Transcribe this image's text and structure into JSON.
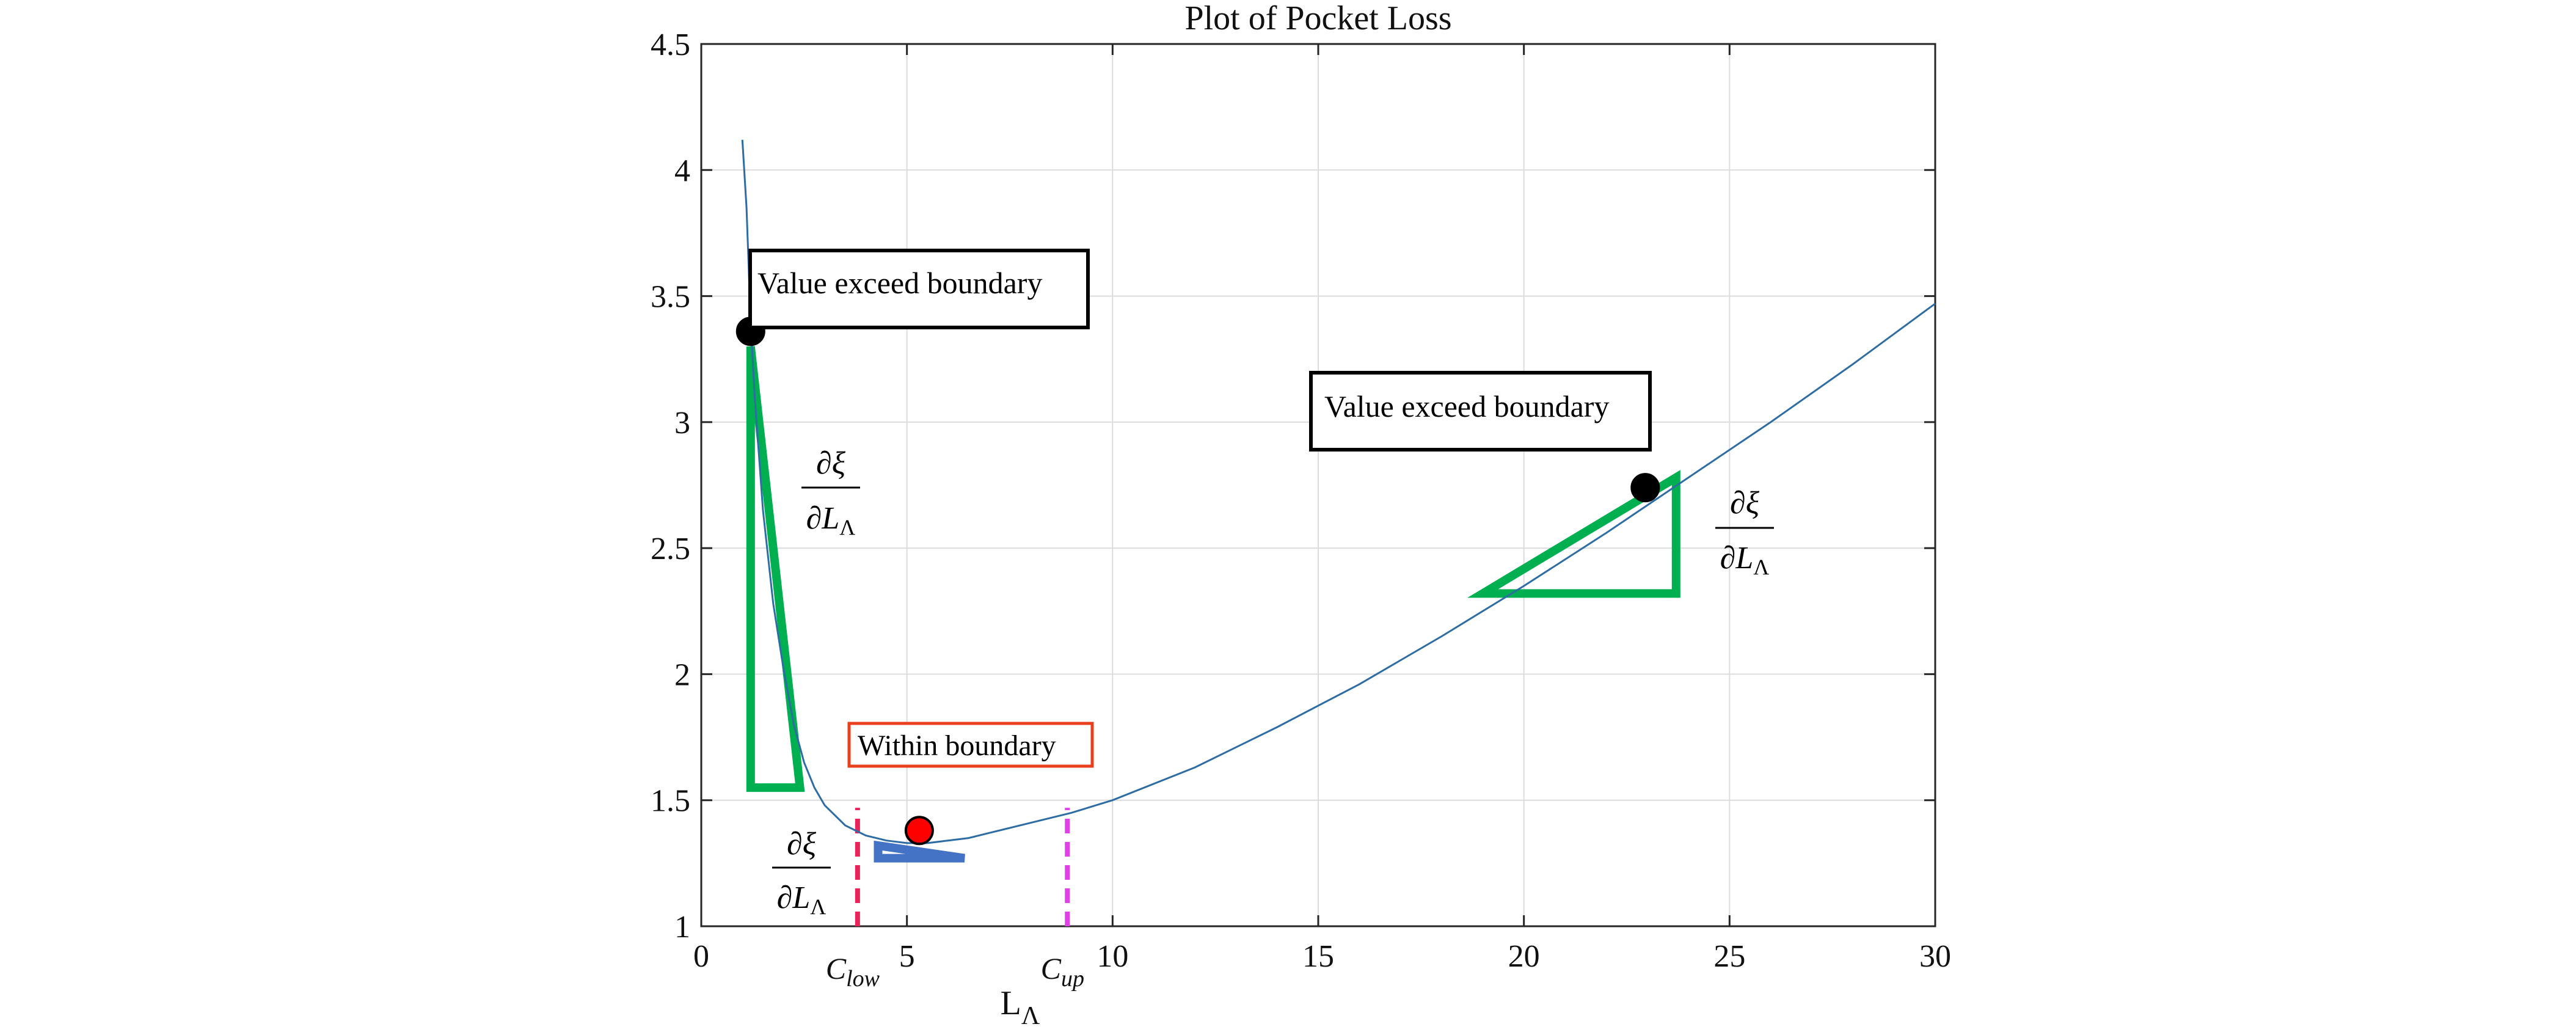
{
  "chart_data": {
    "type": "line",
    "title": "Plot of Pocket Loss",
    "xlabel": "L",
    "xlabel_subscript": "Λ",
    "ylabel": "",
    "xlim": [
      0,
      30
    ],
    "ylim": [
      1,
      4.5
    ],
    "xticks": [
      0,
      5,
      10,
      15,
      20,
      25,
      30
    ],
    "yticks": [
      1,
      1.5,
      2,
      2.5,
      3,
      3.5,
      4,
      4.5
    ],
    "xtick_labels": [
      "0",
      "5",
      "10",
      "15",
      "20",
      "25",
      "30"
    ],
    "ytick_labels": [
      "1",
      "1.5",
      "2",
      "2.5",
      "3",
      "3.5",
      "4",
      "4.5"
    ],
    "grid": true,
    "colors": {
      "curve": "#2e6da4",
      "grid": "#dcdcdc",
      "green_triangle": "#00b050",
      "blue_triangle": "#4472c4",
      "red_point": "#ff0000",
      "black_point": "#000000",
      "c_low_line": "#e8245a",
      "c_up_line": "#e040e8",
      "within_box_border": "#e8401c"
    },
    "series": [
      {
        "x": [
          1.0,
          1.1,
          1.2,
          1.3,
          1.5,
          1.75,
          2.0,
          2.25,
          2.5,
          2.75,
          3.0,
          3.5,
          4.0,
          4.5,
          5.0,
          5.5,
          6.0,
          6.5,
          7.0,
          8.0,
          9.0,
          10.0,
          12.0,
          14.0,
          16.0,
          18.0,
          20.0,
          22.0,
          24.0,
          26.0,
          28.0,
          30.0
        ],
        "y": [
          4.12,
          3.85,
          3.4,
          3.1,
          2.65,
          2.28,
          2.02,
          1.8,
          1.65,
          1.55,
          1.48,
          1.4,
          1.36,
          1.34,
          1.33,
          1.33,
          1.34,
          1.35,
          1.37,
          1.41,
          1.45,
          1.5,
          1.63,
          1.79,
          1.96,
          2.15,
          2.35,
          2.56,
          2.78,
          3.0,
          3.23,
          3.47
        ]
      }
    ],
    "points": [
      {
        "x": 1.2,
        "y": 3.36,
        "color": "#000000"
      },
      {
        "x": 5.3,
        "y": 1.38,
        "color": "#ff0000"
      },
      {
        "x": 22.95,
        "y": 2.74,
        "color": "#000000"
      }
    ],
    "vlines": [
      {
        "x": 3.8,
        "label": "C",
        "sub": "low",
        "color": "#e8245a"
      },
      {
        "x": 8.9,
        "label": "C",
        "sub": "up",
        "color": "#e040e8"
      }
    ],
    "triangles": [
      {
        "vertices": [
          [
            1.2,
            3.3
          ],
          [
            1.2,
            1.55
          ],
          [
            2.4,
            1.55
          ]
        ],
        "color": "#00b050"
      },
      {
        "vertices": [
          [
            4.3,
            1.32
          ],
          [
            4.3,
            1.27
          ],
          [
            6.4,
            1.27
          ]
        ],
        "color": "#4472c4"
      },
      {
        "vertices": [
          [
            23.7,
            2.78
          ],
          [
            23.7,
            2.32
          ],
          [
            19.0,
            2.32
          ]
        ],
        "color": "#00b050"
      }
    ],
    "annotations": {
      "box_left": "Value exceed boundary",
      "box_right": "Value exceed boundary",
      "box_within": "Within boundary",
      "derivative_num": "∂ξ",
      "derivative_den": "∂L",
      "derivative_den_sub": "Λ"
    }
  }
}
